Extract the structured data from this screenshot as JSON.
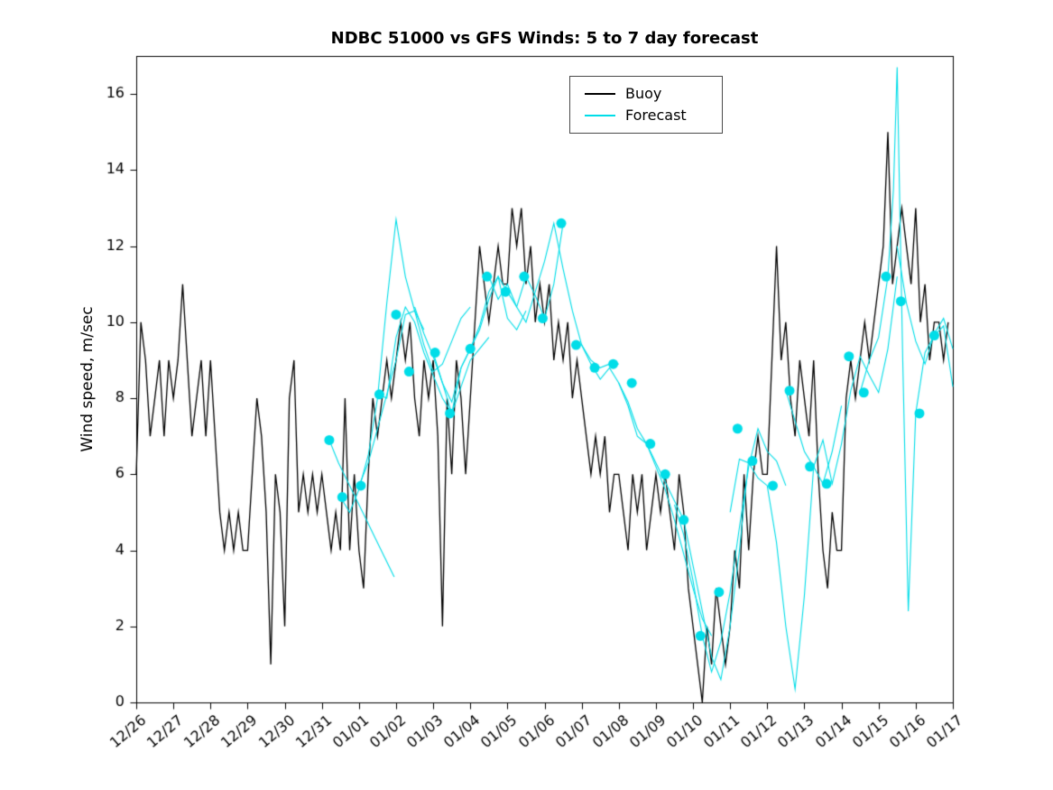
{
  "title": "NDBC 51000 vs GFS Winds: 5 to 7 day forecast",
  "ylabel": "Wind speed, m/sec",
  "legend": {
    "items": [
      {
        "label": "Buoy",
        "color": "#000000"
      },
      {
        "label": "Forecast",
        "color": "#00dde8"
      }
    ]
  },
  "chart_data": {
    "type": "line",
    "title": "NDBC 51000 vs GFS Winds: 5 to 7 day forecast",
    "xlabel": "",
    "ylabel": "Wind speed, m/sec",
    "x_unit": "days since 12/26",
    "xlim": [
      0,
      22
    ],
    "ylim": [
      0,
      17
    ],
    "grid": false,
    "legend_position": "top-center",
    "y_ticks": [
      0,
      2,
      4,
      6,
      8,
      10,
      12,
      14,
      16
    ],
    "x_tick_labels": [
      "12/26",
      "12/27",
      "12/28",
      "12/29",
      "12/30",
      "12/31",
      "01/01",
      "01/02",
      "01/03",
      "01/04",
      "01/05",
      "01/06",
      "01/07",
      "01/08",
      "01/09",
      "01/10",
      "01/11",
      "01/12",
      "01/13",
      "01/14",
      "01/15",
      "01/16",
      "01/17"
    ],
    "buoy": {
      "name": "Buoy",
      "color": "#000000",
      "t0": 0,
      "dt": 0.125,
      "values": [
        6,
        10,
        9,
        7,
        8,
        9,
        7,
        9,
        8,
        9,
        11,
        9,
        7,
        8,
        9,
        7,
        9,
        7,
        5,
        4,
        5,
        4,
        5,
        4,
        4,
        6,
        8,
        7,
        5,
        1,
        6,
        5,
        2,
        8,
        9,
        5,
        6,
        5,
        6,
        5,
        6,
        5,
        4,
        5,
        4,
        8,
        4,
        6,
        4,
        3,
        6,
        8,
        7,
        8,
        9,
        8,
        9,
        10,
        9,
        10,
        8,
        7,
        9,
        8,
        9,
        7,
        2,
        8,
        6,
        9,
        8,
        6,
        8,
        10,
        12,
        11,
        10,
        11,
        12,
        11,
        11,
        13,
        12,
        13,
        11,
        12,
        10,
        11,
        10,
        11,
        9,
        10,
        9,
        10,
        8,
        9,
        8,
        7,
        6,
        7,
        6,
        7,
        5,
        6,
        6,
        5,
        4,
        6,
        5,
        6,
        4,
        5,
        6,
        5,
        6,
        5,
        4,
        6,
        5,
        3,
        2,
        1,
        0,
        2,
        1,
        3,
        2,
        1,
        2,
        4,
        3,
        6,
        4,
        6,
        7,
        6,
        6,
        9,
        12,
        9,
        10,
        8,
        7,
        9,
        8,
        7,
        9,
        6,
        4,
        3,
        5,
        4,
        4,
        8,
        9,
        8,
        9,
        10,
        9,
        10,
        11,
        12,
        15,
        11,
        12,
        13,
        12,
        11,
        13,
        10,
        11,
        9,
        10,
        10,
        9,
        10
      ]
    },
    "forecast": {
      "name": "Forecast",
      "color": "#00dde8",
      "lines": [
        {
          "x0": 5.2,
          "dx": 0.25,
          "y": [
            6.9,
            6.3,
            5.8,
            5.3,
            4.8,
            4.3,
            3.8,
            3.3
          ]
        },
        {
          "x0": 5.5,
          "dx": 0.25,
          "y": [
            5.4,
            5.0,
            5.6,
            6.5,
            8.0,
            10.5,
            12.7,
            11.2,
            10.3,
            9.8
          ]
        },
        {
          "x0": 6.0,
          "dx": 0.25,
          "y": [
            5.7,
            6.3,
            7.2,
            8.1,
            9.0,
            10.2,
            10.3,
            9.4,
            8.7,
            8.9,
            9.5,
            10.1,
            10.4
          ]
        },
        {
          "x0": 6.5,
          "dx": 0.25,
          "y": [
            8.1,
            8.0,
            9.6,
            10.4,
            10.0,
            9.2,
            8.6,
            8.0,
            7.6,
            8.3,
            9.0,
            9.3,
            9.6
          ]
        },
        {
          "x0": 7.5,
          "dx": 0.25,
          "y": [
            10.4,
            9.7,
            9.1,
            8.4,
            7.6,
            8.8,
            9.3,
            9.9,
            10.8,
            11.2,
            10.1,
            9.8,
            10.3
          ]
        },
        {
          "x0": 8.0,
          "dx": 0.25,
          "y": [
            9.2,
            8.4,
            7.9,
            8.8,
            9.3,
            9.8,
            10.6,
            11.2,
            10.8,
            10.4,
            11.2,
            10.7,
            10.1,
            11.0,
            12.6
          ]
        },
        {
          "x0": 9.5,
          "dx": 0.25,
          "y": [
            11.2,
            10.6,
            11.0,
            10.4,
            10.0,
            10.8,
            11.6,
            12.6,
            11.4,
            10.3,
            9.4,
            9.0,
            8.8,
            8.9,
            8.9
          ]
        },
        {
          "x0": 12.0,
          "dx": 0.25,
          "y": [
            9.4,
            8.9,
            8.5,
            8.8,
            8.4,
            7.8,
            7.0,
            6.8,
            6.2,
            5.6,
            4.8,
            3.9,
            3.0,
            2.2,
            1.75
          ]
        },
        {
          "x0": 13.0,
          "dx": 0.25,
          "y": [
            8.4,
            7.9,
            7.2,
            6.8,
            6.3,
            5.8,
            5.3,
            4.8,
            3.6,
            2.4,
            1.2,
            0.6,
            2.0,
            4.0,
            6.4
          ]
        },
        {
          "x0": 14.5,
          "dx": 0.25,
          "y": [
            5.2,
            4.4,
            3.2,
            1.75,
            0.8,
            1.6,
            2.9,
            4.6,
            6.2,
            7.2,
            6.6,
            6.35,
            5.7
          ]
        },
        {
          "x0": 16.0,
          "dx": 0.25,
          "y": [
            5.0,
            6.4,
            6.3,
            5.9,
            5.7,
            4.2,
            2.0,
            0.35,
            2.8,
            6.2,
            5.75,
            6.6,
            7.8
          ]
        },
        {
          "x0": 17.5,
          "dx": 0.25,
          "y": [
            8.2,
            7.4,
            6.6,
            6.2,
            6.9,
            5.75,
            6.8,
            8.2,
            9.1,
            8.6,
            8.15,
            9.3,
            11.2
          ]
        },
        {
          "x": [
            19.5,
            19.75,
            20.0,
            20.25,
            20.4,
            20.5,
            20.65,
            20.8,
            21.0,
            21.25,
            21.5,
            21.75,
            22.0
          ],
          "y": [
            8.15,
            9.0,
            9.6,
            11.2,
            13.5,
            16.7,
            9.0,
            2.4,
            7.6,
            9.2,
            9.65,
            9.9,
            8.3
          ]
        },
        {
          "x0": 20.5,
          "dx": 0.25,
          "y": [
            12.0,
            10.5,
            9.5,
            8.9,
            9.7,
            10.1,
            9.3
          ]
        }
      ],
      "markers": [
        [
          5.2,
          6.9
        ],
        [
          5.55,
          5.4
        ],
        [
          6.05,
          5.7
        ],
        [
          6.55,
          8.1
        ],
        [
          7.0,
          10.2
        ],
        [
          7.35,
          8.7
        ],
        [
          8.05,
          9.2
        ],
        [
          8.45,
          7.6
        ],
        [
          9.0,
          9.3
        ],
        [
          9.45,
          11.2
        ],
        [
          9.95,
          10.8
        ],
        [
          10.45,
          11.2
        ],
        [
          10.95,
          10.1
        ],
        [
          11.45,
          12.6
        ],
        [
          11.85,
          9.4
        ],
        [
          12.35,
          8.8
        ],
        [
          12.85,
          8.9
        ],
        [
          13.35,
          8.4
        ],
        [
          13.85,
          6.8
        ],
        [
          14.25,
          6.0
        ],
        [
          14.75,
          4.8
        ],
        [
          15.2,
          1.75
        ],
        [
          15.7,
          2.9
        ],
        [
          16.2,
          7.2
        ],
        [
          16.6,
          6.35
        ],
        [
          17.15,
          5.7
        ],
        [
          17.6,
          8.2
        ],
        [
          18.15,
          6.2
        ],
        [
          18.6,
          5.75
        ],
        [
          19.2,
          9.1
        ],
        [
          19.6,
          8.15
        ],
        [
          20.2,
          11.2
        ],
        [
          20.6,
          10.55
        ],
        [
          21.1,
          7.6
        ],
        [
          21.5,
          9.65
        ]
      ]
    }
  }
}
